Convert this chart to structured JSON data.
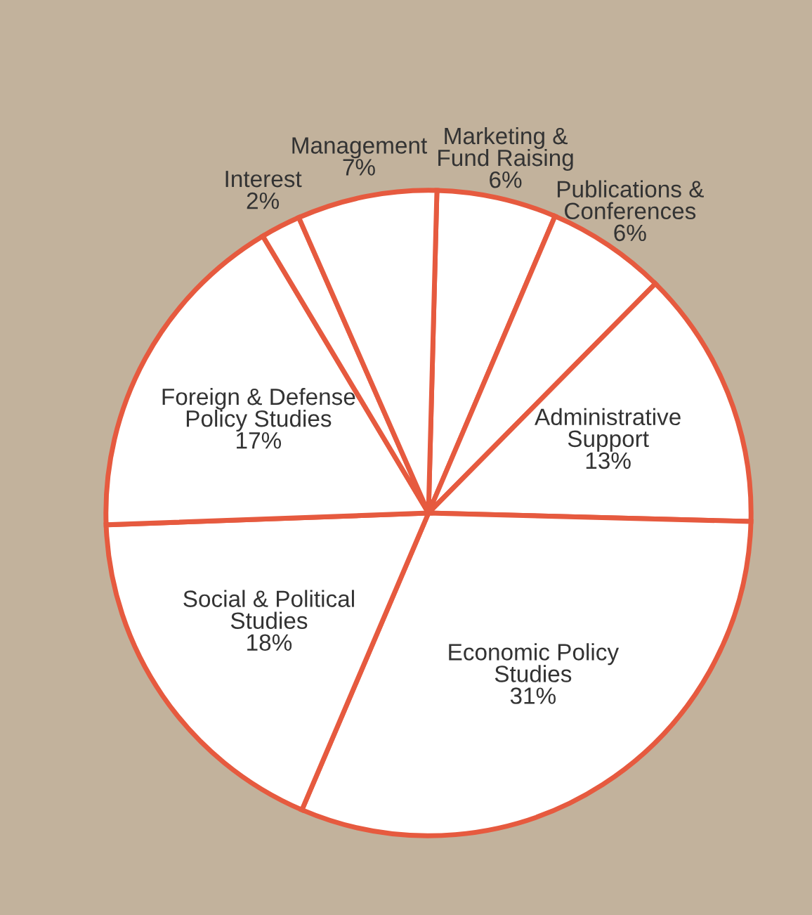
{
  "chart_data": {
    "type": "pie",
    "categories": [
      "Marketing &\nFund Raising",
      "Publications &\nConferences",
      "Administrative\nSupport",
      "Economic Policy\nStudies",
      "Social & Political\nStudies",
      "Foreign & Defense\nPolicy Studies",
      "Interest",
      "Management"
    ],
    "values": [
      6,
      6,
      13,
      31,
      18,
      17,
      2,
      7
    ],
    "value_labels": [
      "6%",
      "6%",
      "13%",
      "31%",
      "18%",
      "17%",
      "2%",
      "7%"
    ],
    "colors": [
      "#ffffff",
      "#ffffff",
      "#ffffff",
      "#ffffff",
      "#ffffff",
      "#ffffff",
      "#ffffff",
      "#ffffff"
    ],
    "legend": false
  }
}
